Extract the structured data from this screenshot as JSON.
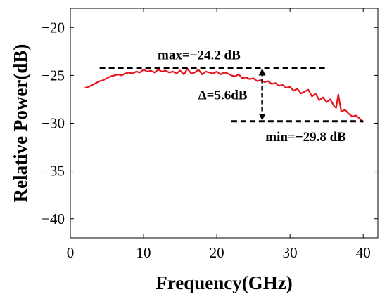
{
  "chart_data": {
    "type": "line",
    "xlabel": "Frequency(GHz)",
    "ylabel": "Relative Power(dB)",
    "xlim": [
      0,
      42
    ],
    "ylim": [
      -42,
      -18
    ],
    "xticks": [
      0,
      10,
      20,
      30,
      40
    ],
    "yticks": [
      -20,
      -25,
      -30,
      -35,
      -40
    ],
    "xtick_labels": [
      "0",
      "10",
      "20",
      "30",
      "40"
    ],
    "ytick_labels": [
      "−20",
      "−25",
      "−30",
      "−35",
      "−40"
    ],
    "grid": false,
    "series": [
      {
        "color": "#e8141c",
        "x": [
          2,
          2.5,
          3,
          3.5,
          4,
          4.5,
          5,
          5.5,
          6,
          6.5,
          7,
          7.5,
          8,
          8.5,
          9,
          9.5,
          10,
          10.5,
          11,
          11.5,
          12,
          12.5,
          13,
          13.5,
          14,
          14.5,
          15,
          15.5,
          16,
          16.5,
          17,
          17.5,
          18,
          18.5,
          19,
          19.5,
          20,
          20.5,
          21,
          21.5,
          22,
          22.5,
          23,
          23.5,
          24,
          24.5,
          25,
          25.5,
          26,
          26.5,
          27,
          27.5,
          28,
          28.5,
          29,
          29.5,
          30,
          30.5,
          31,
          31.5,
          32,
          32.5,
          33,
          33.5,
          34,
          34.5,
          35,
          35.5,
          36,
          36.3,
          36.6,
          37,
          37.5,
          38,
          38.5,
          39,
          39.5,
          40
        ],
        "y": [
          -26.3,
          -26.2,
          -26.0,
          -25.8,
          -25.6,
          -25.5,
          -25.3,
          -25.1,
          -25.0,
          -24.9,
          -25.0,
          -24.8,
          -24.7,
          -24.8,
          -24.6,
          -24.7,
          -24.4,
          -24.6,
          -24.5,
          -24.7,
          -24.4,
          -24.6,
          -24.5,
          -24.7,
          -24.6,
          -24.8,
          -24.5,
          -24.9,
          -24.3,
          -24.8,
          -24.7,
          -24.4,
          -24.9,
          -24.6,
          -24.7,
          -24.8,
          -24.6,
          -24.9,
          -24.7,
          -24.8,
          -25.0,
          -25.1,
          -24.9,
          -25.3,
          -25.2,
          -25.4,
          -25.3,
          -25.6,
          -25.5,
          -25.7,
          -25.6,
          -25.9,
          -25.8,
          -26.1,
          -26.0,
          -26.3,
          -26.2,
          -26.6,
          -26.4,
          -26.9,
          -26.7,
          -26.5,
          -27.2,
          -26.9,
          -27.6,
          -27.3,
          -27.8,
          -27.5,
          -28.2,
          -28.4,
          -27.0,
          -28.8,
          -28.6,
          -29.0,
          -29.3,
          -29.2,
          -29.5,
          -29.9
        ]
      }
    ],
    "annotations": {
      "max_label": "max=−24.2 dB",
      "min_label": "min=−29.8 dB",
      "delta_label": "Δ=5.6dB",
      "max_value": -24.2,
      "min_value": -29.8,
      "max_line_x": [
        4,
        35
      ],
      "min_line_x": [
        22,
        40
      ],
      "arrow_x": 26.2
    }
  }
}
